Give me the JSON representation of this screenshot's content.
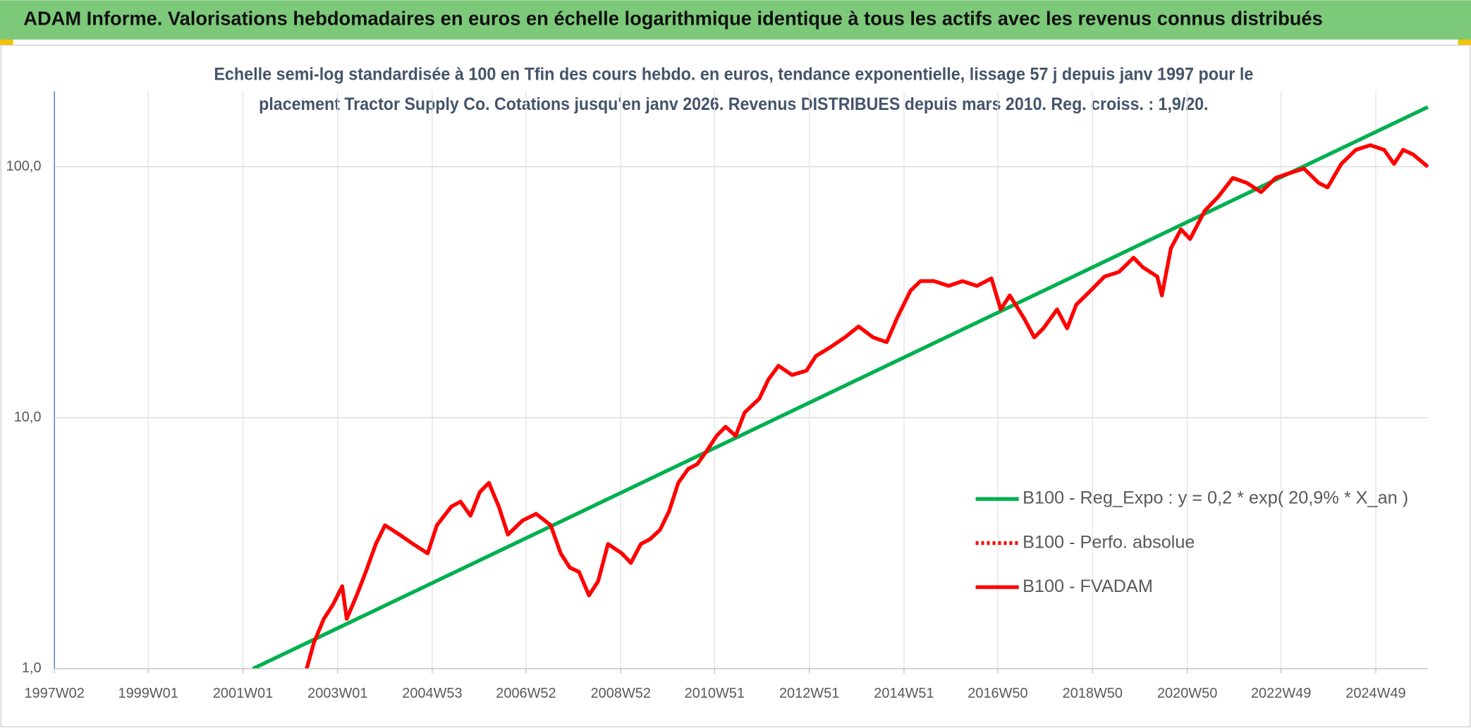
{
  "header": {
    "title": "ADAM Informe. Valorisations hebdomadaires en euros en échelle logarithmique identique à tous les actifs avec les revenus connus distribués"
  },
  "chart_data": {
    "type": "line",
    "subtitle": [
      "Echelle semi-log standardisée à 100 en Tfin des cours hebdo. en euros, tendance exponentielle, lissage 57 j depuis janv 1997 pour le",
      "placement Tractor Supply Co. Cotations jusqu'en janv 2026. Revenus DISTRIBUES depuis mars 2010. Reg. croiss. : 1,9/20."
    ],
    "log_scale": true,
    "grid": true,
    "legend": "right",
    "xlim": [
      "1997W02",
      "2026W02"
    ],
    "xticks": [
      "1997W02",
      "1999W01",
      "2001W01",
      "2003W01",
      "2004W53",
      "2006W52",
      "2008W52",
      "2010W51",
      "2012W51",
      "2014W51",
      "2016W50",
      "2018W50",
      "2020W50",
      "2022W49",
      "2024W49"
    ],
    "ylim": [
      1,
      200
    ],
    "yticks": [
      {
        "value": 1,
        "label": "1,0"
      },
      {
        "value": 10,
        "label": "10,0"
      },
      {
        "value": 100,
        "label": "100,0"
      }
    ],
    "x": [
      "2002W19",
      "2002W27",
      "2002W38",
      "2002W48",
      "2003W06",
      "2003W11",
      "2003W22",
      "2003W32",
      "2003W43",
      "2004W01",
      "2004W17",
      "2004W32",
      "2004W48",
      "2005W06",
      "2005W22",
      "2005W32",
      "2005W43",
      "2006W01",
      "2006W11",
      "2006W22",
      "2006W32",
      "2006W48",
      "2007W11",
      "2007W27",
      "2007W38",
      "2007W48",
      "2008W06",
      "2008W17",
      "2008W27",
      "2008W38",
      "2009W01",
      "2009W11",
      "2009W22",
      "2009W32",
      "2009W43",
      "2010W01",
      "2010W11",
      "2010W22",
      "2010W32",
      "2010W43",
      "2011W01",
      "2011W11",
      "2011W22",
      "2011W32",
      "2011W48",
      "2012W06",
      "2012W17",
      "2012W32",
      "2012W48",
      "2013W06",
      "2013W22",
      "2013W38",
      "2014W01",
      "2014W17",
      "2014W32",
      "2014W43",
      "2015W06",
      "2015W17",
      "2015W32",
      "2015W48",
      "2016W11",
      "2016W27",
      "2016W43",
      "2017W01",
      "2017W11",
      "2017W27",
      "2017W38",
      "2017W48",
      "2018W11",
      "2018W22",
      "2018W32",
      "2018W48",
      "2019W11",
      "2019W27",
      "2019W43",
      "2020W01",
      "2020W17",
      "2020W22",
      "2020W32",
      "2020W43",
      "2021W01",
      "2021W17",
      "2021W32",
      "2021W48",
      "2022W11",
      "2022W27",
      "2022W43",
      "2023W06",
      "2023W22",
      "2023W38",
      "2023W48",
      "2024W11",
      "2024W27",
      "2024W43",
      "2025W06",
      "2025W17",
      "2025W27",
      "2025W38",
      "2026W02"
    ],
    "series": [
      {
        "name": "B100 - Reg_Expo : y = 0,2 * exp( 20,9% *  X_an )",
        "color": "#00b050",
        "style": "solid",
        "x": [
          "2001W12",
          "2026W02"
        ],
        "values": [
          1.0,
          173
        ]
      },
      {
        "name": "B100 - Perfo. absolue",
        "color": "#ff0000",
        "style": "dotted",
        "values": [
          1.0,
          1.27,
          1.58,
          1.8,
          2.13,
          1.58,
          1.96,
          2.43,
          3.14,
          3.73,
          3.42,
          3.14,
          2.88,
          3.73,
          4.43,
          4.63,
          4.07,
          5.05,
          5.5,
          4.43,
          3.42,
          3.89,
          4.14,
          3.73,
          2.88,
          2.53,
          2.43,
          1.96,
          2.23,
          3.14,
          2.88,
          2.64,
          3.14,
          3.28,
          3.57,
          4.25,
          5.5,
          6.25,
          6.53,
          7.43,
          8.46,
          9.21,
          8.46,
          10.5,
          11.9,
          14.2,
          16.1,
          14.8,
          15.4,
          17.6,
          19.1,
          20.9,
          23.1,
          20.9,
          20.0,
          24.8,
          32.1,
          35.0,
          35.0,
          33.5,
          35.0,
          33.5,
          35.9,
          27.0,
          30.7,
          24.8,
          20.9,
          22.7,
          27.0,
          22.7,
          28.2,
          32.1,
          36.5,
          38.1,
          43.4,
          39.8,
          36.5,
          30.7,
          47.3,
          56.3,
          51.5,
          66.7,
          75.9,
          90.2,
          86.3,
          79.2,
          90.2,
          94.2,
          98.4,
          86.3,
          82.7,
          102.6,
          116.7,
          121.9,
          116.7,
          102.6,
          116.7,
          111.9,
          100
        ]
      },
      {
        "name": "B100 - FVADAM",
        "color": "#ff0000",
        "style": "solid",
        "values": [
          1.0,
          1.27,
          1.58,
          1.8,
          2.13,
          1.58,
          1.96,
          2.43,
          3.14,
          3.73,
          3.42,
          3.14,
          2.88,
          3.73,
          4.43,
          4.63,
          4.07,
          5.05,
          5.5,
          4.43,
          3.42,
          3.89,
          4.14,
          3.73,
          2.88,
          2.53,
          2.43,
          1.96,
          2.23,
          3.14,
          2.88,
          2.64,
          3.14,
          3.28,
          3.57,
          4.25,
          5.5,
          6.25,
          6.53,
          7.43,
          8.46,
          9.21,
          8.46,
          10.5,
          11.9,
          14.2,
          16.1,
          14.8,
          15.4,
          17.6,
          19.1,
          20.9,
          23.1,
          20.9,
          20.0,
          24.8,
          32.1,
          35.0,
          35.0,
          33.5,
          35.0,
          33.5,
          35.9,
          27.0,
          30.7,
          24.8,
          20.9,
          22.7,
          27.0,
          22.7,
          28.2,
          32.1,
          36.5,
          38.1,
          43.4,
          39.8,
          36.5,
          30.7,
          47.3,
          56.3,
          51.5,
          66.7,
          75.9,
          90.2,
          86.3,
          79.2,
          90.2,
          94.2,
          98.4,
          86.3,
          82.7,
          102.6,
          116.7,
          121.9,
          116.7,
          102.6,
          116.7,
          111.9,
          100
        ]
      }
    ]
  }
}
